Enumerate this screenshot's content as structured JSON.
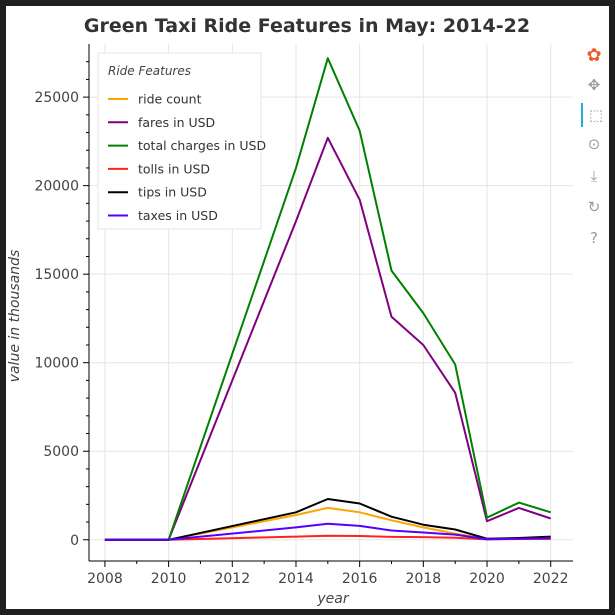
{
  "chart_data": {
    "type": "line",
    "title": "Green Taxi Ride Features in May: 2014-22",
    "xlabel": "year",
    "ylabel": "value in thousands",
    "xlim": [
      2007.5,
      2022.7
    ],
    "ylim": [
      -1200,
      28000
    ],
    "x_ticks": [
      2008,
      2010,
      2012,
      2014,
      2016,
      2018,
      2020,
      2022
    ],
    "y_ticks": [
      0,
      5000,
      10000,
      15000,
      20000,
      25000
    ],
    "grid": true,
    "legend": {
      "title": "Ride Features",
      "placement": "top-left"
    },
    "series": [
      {
        "name": "ride count",
        "color": "#ffa500",
        "x": [
          2008,
          2010,
          2014,
          2015,
          2016,
          2017,
          2018,
          2019,
          2020,
          2021,
          2022
        ],
        "y": [
          0,
          0,
          1400,
          1800,
          1550,
          1100,
          700,
          350,
          50,
          70,
          60
        ]
      },
      {
        "name": "fares in USD",
        "color": "#800080",
        "x": [
          2008,
          2010,
          2014,
          2015,
          2016,
          2017,
          2018,
          2019,
          2020,
          2021,
          2022
        ],
        "y": [
          0,
          0,
          18000,
          22700,
          19200,
          12600,
          11000,
          8300,
          1050,
          1800,
          1200
        ]
      },
      {
        "name": "total charges in USD",
        "color": "#008000",
        "x": [
          2008,
          2010,
          2014,
          2015,
          2016,
          2017,
          2018,
          2019,
          2020,
          2021,
          2022
        ],
        "y": [
          0,
          0,
          21000,
          27200,
          23100,
          15200,
          12800,
          9900,
          1250,
          2100,
          1550
        ]
      },
      {
        "name": "tolls in USD",
        "color": "#ff2222",
        "x": [
          2008,
          2010,
          2014,
          2015,
          2016,
          2017,
          2018,
          2019,
          2020,
          2021,
          2022
        ],
        "y": [
          0,
          0,
          180,
          230,
          210,
          160,
          150,
          110,
          20,
          40,
          50
        ]
      },
      {
        "name": "tips in USD",
        "color": "#000000",
        "x": [
          2008,
          2010,
          2014,
          2015,
          2016,
          2017,
          2018,
          2019,
          2020,
          2021,
          2022
        ],
        "y": [
          0,
          0,
          1550,
          2300,
          2050,
          1300,
          850,
          580,
          60,
          100,
          180
        ]
      },
      {
        "name": "taxes in USD",
        "color": "#5500ff",
        "x": [
          2008,
          2010,
          2014,
          2015,
          2016,
          2017,
          2018,
          2019,
          2020,
          2021,
          2022
        ],
        "y": [
          0,
          0,
          700,
          900,
          780,
          520,
          410,
          290,
          30,
          60,
          80
        ]
      }
    ]
  },
  "toolbar": {
    "tools": [
      {
        "name": "bokeh-logo-icon",
        "glyph": "✿",
        "interactable": false,
        "active": false
      },
      {
        "name": "pan-icon",
        "glyph": "✥",
        "interactable": true,
        "active": false
      },
      {
        "name": "box-zoom-icon",
        "glyph": "⬚",
        "interactable": true,
        "active": true
      },
      {
        "name": "wheel-zoom-icon",
        "glyph": "⊙",
        "interactable": true,
        "active": false
      },
      {
        "name": "save-icon",
        "glyph": "⤓",
        "interactable": true,
        "active": false
      },
      {
        "name": "reset-icon",
        "glyph": "↻",
        "interactable": true,
        "active": false
      },
      {
        "name": "help-icon",
        "glyph": "?",
        "interactable": true,
        "active": false
      }
    ]
  }
}
